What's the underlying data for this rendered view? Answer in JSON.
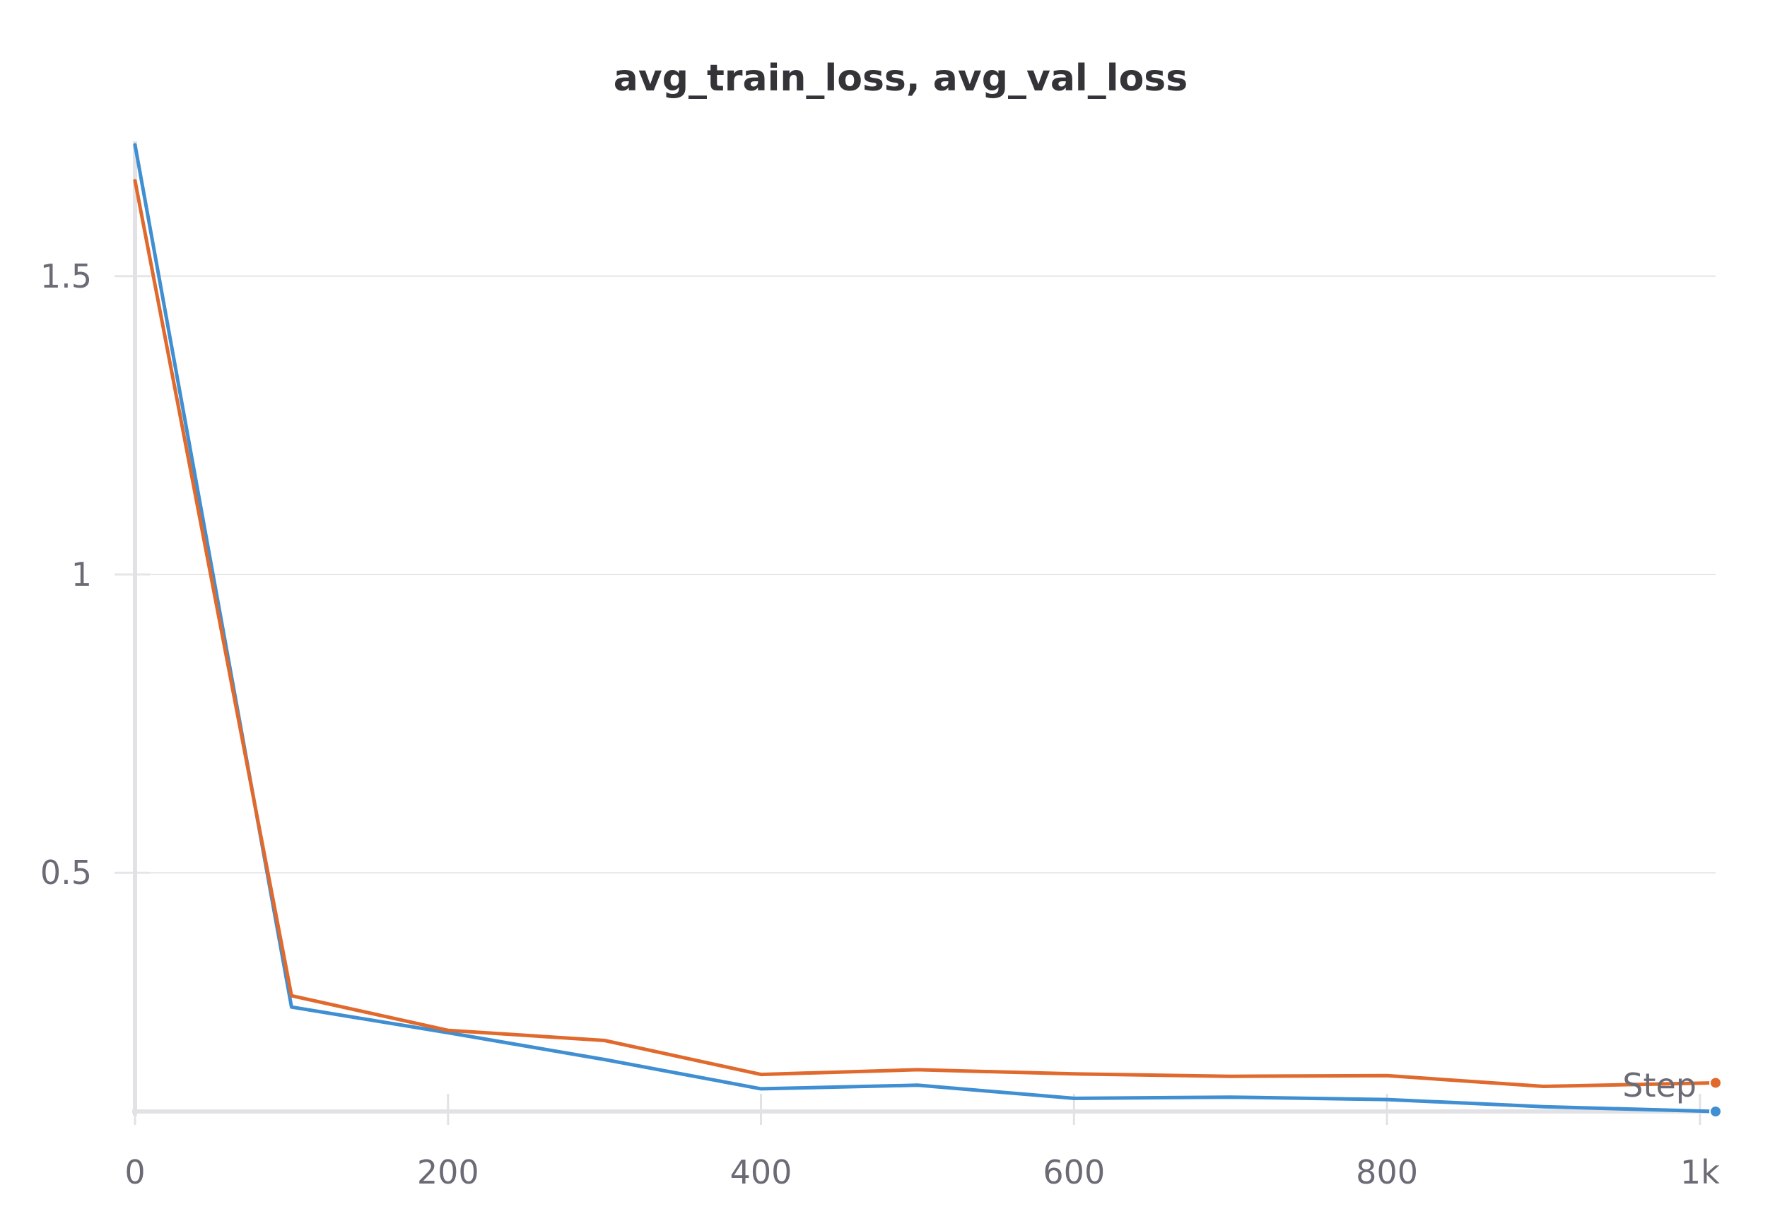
{
  "chart_data": {
    "type": "line",
    "title": "avg_train_loss, avg_val_loss",
    "xlabel": "Step",
    "ylabel": "",
    "xlim": [
      0,
      1010
    ],
    "ylim": [
      0.1,
      1.72
    ],
    "x_ticks": [
      0,
      200,
      400,
      600,
      800,
      1000
    ],
    "x_tick_labels": [
      "0",
      "200",
      "400",
      "600",
      "800",
      "1k"
    ],
    "y_ticks": [
      0.5,
      1,
      1.5
    ],
    "y_tick_labels": [
      "0.5",
      "1",
      "1.5"
    ],
    "grid": true,
    "legend": "none",
    "series": [
      {
        "color": "#3f8fd2",
        "x": [
          0,
          100,
          200,
          300,
          400,
          500,
          600,
          700,
          800,
          900,
          1010
        ],
        "y": [
          1.72,
          0.275,
          0.232,
          0.187,
          0.138,
          0.144,
          0.122,
          0.124,
          0.12,
          0.108,
          0.1
        ]
      },
      {
        "color": "#e06a2e",
        "x": [
          0,
          100,
          200,
          300,
          400,
          500,
          600,
          700,
          800,
          900,
          1010
        ],
        "y": [
          1.66,
          0.294,
          0.236,
          0.219,
          0.162,
          0.17,
          0.163,
          0.159,
          0.16,
          0.142,
          0.148
        ]
      }
    ]
  }
}
